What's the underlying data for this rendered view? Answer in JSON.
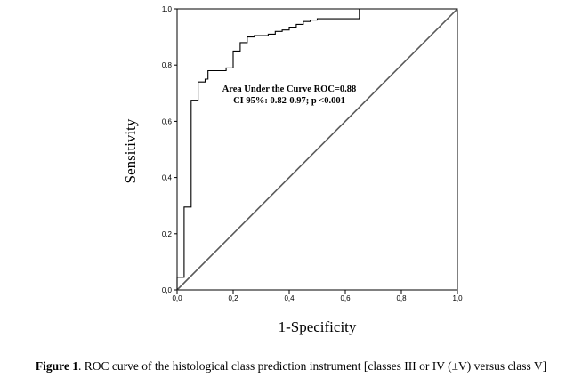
{
  "chart_data": {
    "type": "line",
    "xlabel": "1-Specificity",
    "ylabel": "Sensitivity",
    "xlim": [
      0,
      1
    ],
    "ylim": [
      0,
      1
    ],
    "x_ticks": [
      "0,0",
      "0,2",
      "0,4",
      "0,6",
      "0,8",
      "1,0"
    ],
    "y_ticks": [
      "0,0",
      "0,2",
      "0,4",
      "0,6",
      "0,8",
      "1,0"
    ],
    "annotations": [
      "Area Under the Curve ROC=0.88",
      "CI 95%: 0.82-0.97; p <0.001"
    ],
    "series": [
      {
        "role": "roc-curve",
        "x": [
          0,
          0,
          0.025,
          0.025,
          0.05,
          0.05,
          0.075,
          0.075,
          0.1,
          0.1,
          0.11,
          0.11,
          0.175,
          0.175,
          0.2,
          0.2,
          0.225,
          0.225,
          0.25,
          0.25,
          0.275,
          0.275,
          0.3,
          0.3,
          0.325,
          0.325,
          0.35,
          0.35,
          0.375,
          0.375,
          0.4,
          0.4,
          0.425,
          0.425,
          0.45,
          0.45,
          0.475,
          0.475,
          0.5,
          0.5,
          0.525,
          0.525,
          0.55,
          0.55,
          0.575,
          0.575,
          0.6,
          0.6,
          0.625,
          0.625,
          0.65,
          0.65,
          0.675,
          0.675,
          0.7,
          0.7,
          0.725,
          0.725,
          0.75,
          0.75,
          0.775,
          0.775,
          0.8,
          0.8,
          0.825,
          0.825,
          0.85,
          0.85,
          0.875,
          0.875,
          0.9,
          0.9,
          0.925,
          0.925,
          0.95,
          0.95,
          0.975,
          0.975,
          1.0
        ],
        "y": [
          0,
          0.045,
          0.045,
          0.295,
          0.295,
          0.675,
          0.675,
          0.74,
          0.74,
          0.75,
          0.75,
          0.78,
          0.78,
          0.79,
          0.79,
          0.85,
          0.85,
          0.88,
          0.88,
          0.9,
          0.9,
          0.905,
          0.905,
          0.905,
          0.905,
          0.91,
          0.91,
          0.92,
          0.92,
          0.925,
          0.925,
          0.935,
          0.935,
          0.945,
          0.945,
          0.955,
          0.955,
          0.96,
          0.96,
          0.965,
          0.965,
          0.965,
          0.965,
          0.965,
          0.965,
          0.965,
          0.965,
          0.965,
          0.965,
          0.965,
          0.965,
          1.0,
          1.0,
          1.0,
          1.0,
          1.0,
          1.0,
          1.0,
          1.0,
          1.0,
          1.0,
          1.0,
          1.0,
          1.0,
          1.0,
          1.0,
          1.0,
          1.0,
          1.0,
          1.0,
          1.0,
          1.0,
          1.0,
          1.0,
          1.0,
          1.0,
          1.0,
          1.0,
          1.0
        ],
        "color": "#000000"
      },
      {
        "role": "reference-line",
        "x": [
          0,
          1
        ],
        "y": [
          0,
          1
        ],
        "color": "#5a5a5a"
      }
    ]
  },
  "caption": {
    "label": "Figure 1",
    "text": ". ROC curve of the histological class prediction instrument [classes III or IV (±V) versus class V]"
  }
}
